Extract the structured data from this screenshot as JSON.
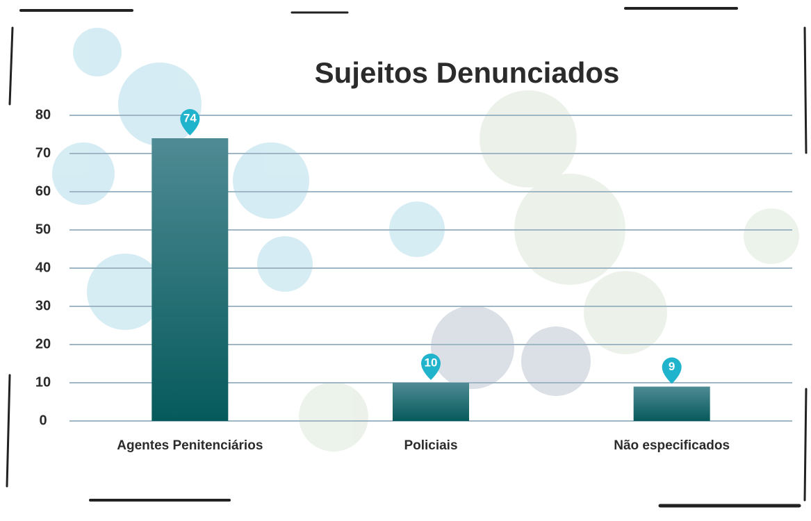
{
  "chart_data": {
    "type": "bar",
    "title": "Sujeitos Denunciados",
    "categories": [
      "Agentes Penitenciários",
      "Policiais",
      "Não especificados"
    ],
    "values": [
      74,
      10,
      9
    ],
    "color": "#0d5d60",
    "label_color": "#1fb3cc",
    "ylim": [
      0,
      80
    ],
    "yticks": [
      0,
      10,
      20,
      30,
      40,
      50,
      60,
      70,
      80
    ],
    "grid": true
  }
}
